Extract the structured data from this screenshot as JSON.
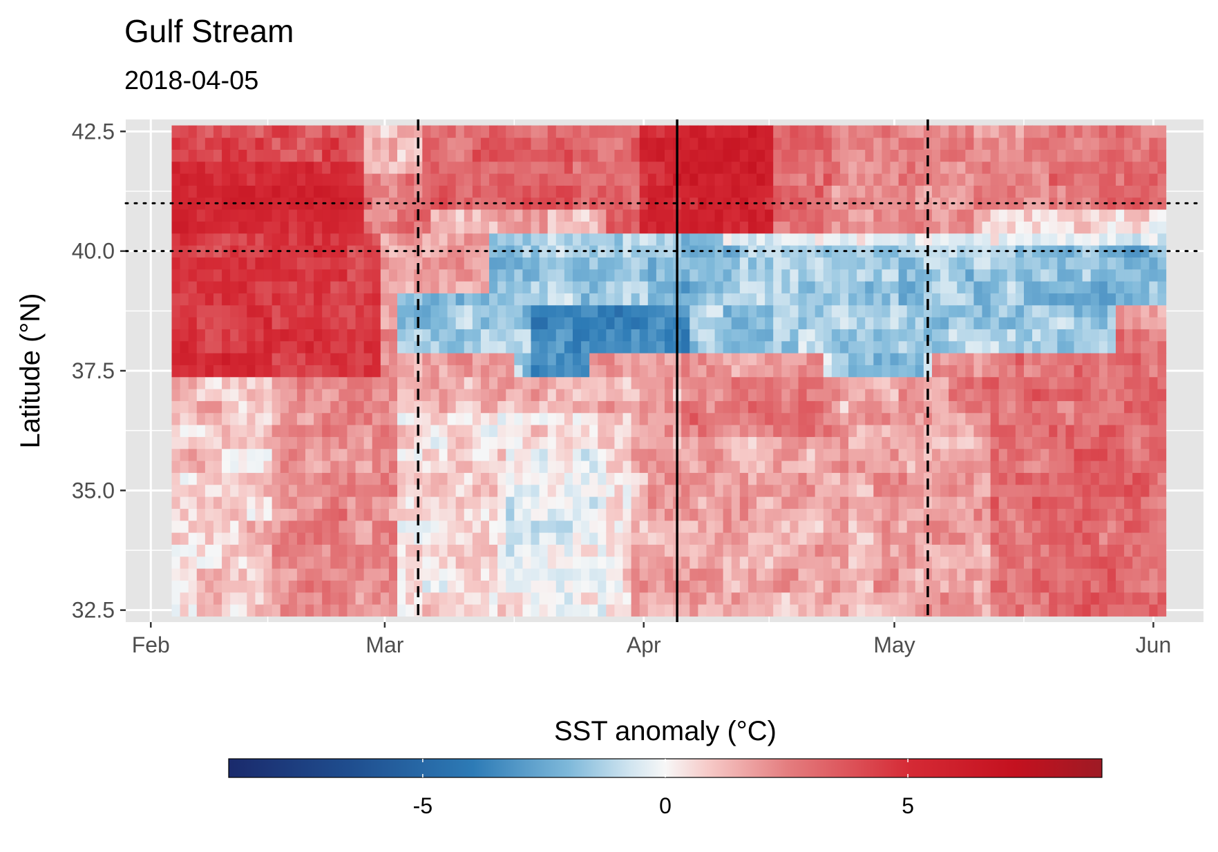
{
  "chart_data": {
    "type": "heatmap",
    "title": "Gulf Stream",
    "subtitle": "2018-04-05",
    "xlabel": "",
    "ylabel": "Latitude (°N)",
    "x_ticks": [
      "Feb",
      "Mar",
      "Apr",
      "May",
      "Jun"
    ],
    "x_tick_dates": [
      "2018-02-01",
      "2018-03-01",
      "2018-04-01",
      "2018-05-01",
      "2018-06-01"
    ],
    "y_ticks": [
      "32.5",
      "35.0",
      "37.5",
      "40.0",
      "42.5"
    ],
    "xlim": [
      "2018-01-29",
      "2018-06-07"
    ],
    "ylim": [
      32.25,
      42.75
    ],
    "data_extent": {
      "x": [
        "2018-02-04",
        "2018-06-02"
      ],
      "y": [
        32.5,
        42.5
      ]
    },
    "grid": true,
    "reference_lines": {
      "solid_vertical": "2018-04-05",
      "dashed_vertical": [
        "2018-03-05",
        "2018-05-05"
      ],
      "dotted_horizontal": [
        40.0,
        41.0
      ]
    },
    "legend": {
      "title": "SST anomaly (°C)",
      "position": "bottom",
      "range": [
        -9,
        9
      ],
      "ticks": [
        "-5",
        "0",
        "5"
      ],
      "colormap": "RdBu reversed"
    },
    "colors": {
      "panel": "#e5e5e5",
      "gridline": "#ffffff",
      "strong_blue": "#2166ac",
      "strong_red": "#cb181d"
    }
  }
}
